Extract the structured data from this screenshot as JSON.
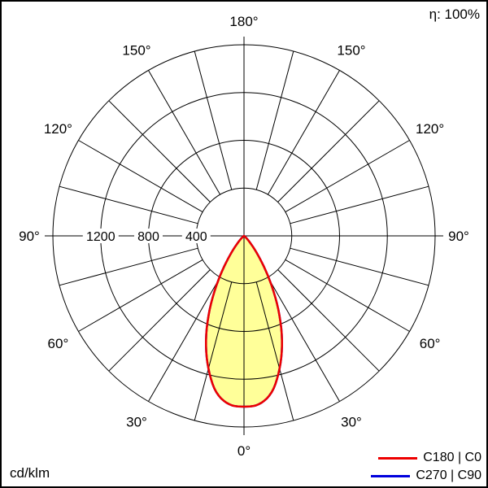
{
  "frame": {
    "eta_label": "η: 100%",
    "unit_label": "cd/klm"
  },
  "legend": {
    "items": [
      {
        "label": "C180 | C0",
        "color": "#ee0000"
      },
      {
        "label": "C270 | C90",
        "color": "#0000dd"
      }
    ]
  },
  "chart_data": {
    "type": "polar",
    "subtype": "luminous-intensity-distribution",
    "unit": "cd/klm",
    "efficiency": "100%",
    "r_max": 1600,
    "rings": [
      400,
      800,
      1200,
      1600
    ],
    "radial_tick_labels": [
      {
        "value": 1200,
        "label": "1200"
      },
      {
        "value": 800,
        "label": "800"
      },
      {
        "value": 400,
        "label": "400"
      }
    ],
    "angle_step_deg": 15,
    "angle_labels": [
      {
        "deg": 0,
        "label": "0°"
      },
      {
        "deg": 30,
        "label": "30°"
      },
      {
        "deg": 60,
        "label": "60°"
      },
      {
        "deg": 90,
        "label": "90°"
      },
      {
        "deg": 120,
        "label": "120°"
      },
      {
        "deg": 150,
        "label": "150°"
      },
      {
        "deg": 180,
        "label": "180°"
      }
    ],
    "symmetric": true,
    "series": [
      {
        "name": "C270 | C90",
        "color": "#0000dd",
        "fill": null,
        "points": [
          {
            "gamma": 0,
            "value": 1430
          },
          {
            "gamma": 5,
            "value": 1415
          },
          {
            "gamma": 10,
            "value": 1330
          },
          {
            "gamma": 15,
            "value": 1150
          },
          {
            "gamma": 20,
            "value": 930
          },
          {
            "gamma": 25,
            "value": 680
          },
          {
            "gamma": 30,
            "value": 430
          },
          {
            "gamma": 35,
            "value": 230
          },
          {
            "gamma": 40,
            "value": 105
          },
          {
            "gamma": 45,
            "value": 40
          },
          {
            "gamma": 50,
            "value": 12
          },
          {
            "gamma": 55,
            "value": 3
          },
          {
            "gamma": 60,
            "value": 0
          },
          {
            "gamma": 75,
            "value": 0
          },
          {
            "gamma": 90,
            "value": 0
          }
        ]
      },
      {
        "name": "C180 | C0",
        "color": "#ee0000",
        "fill": "#ffff99",
        "points": [
          {
            "gamma": 0,
            "value": 1430
          },
          {
            "gamma": 5,
            "value": 1415
          },
          {
            "gamma": 10,
            "value": 1330
          },
          {
            "gamma": 15,
            "value": 1150
          },
          {
            "gamma": 20,
            "value": 930
          },
          {
            "gamma": 25,
            "value": 680
          },
          {
            "gamma": 30,
            "value": 430
          },
          {
            "gamma": 35,
            "value": 230
          },
          {
            "gamma": 40,
            "value": 105
          },
          {
            "gamma": 45,
            "value": 40
          },
          {
            "gamma": 50,
            "value": 12
          },
          {
            "gamma": 55,
            "value": 3
          },
          {
            "gamma": 60,
            "value": 0
          },
          {
            "gamma": 75,
            "value": 0
          },
          {
            "gamma": 90,
            "value": 0
          }
        ]
      }
    ]
  }
}
